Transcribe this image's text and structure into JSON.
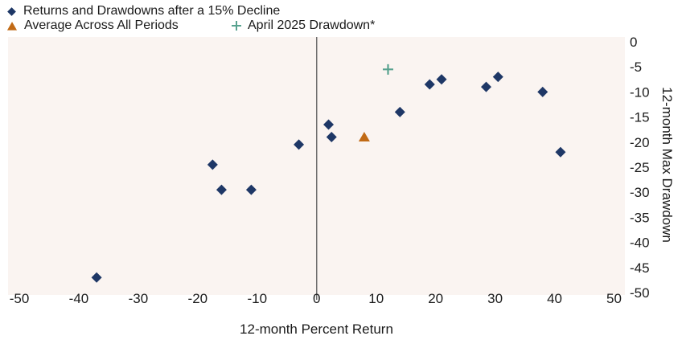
{
  "chart_data": {
    "type": "scatter",
    "title": "",
    "xlabel": "12-month Percent Return",
    "ylabel": "12-month Max Drawdown",
    "xlim": [
      -50,
      50
    ],
    "ylim": [
      0,
      -50
    ],
    "x_ticks": [
      -50,
      -40,
      -30,
      -20,
      -10,
      0,
      10,
      20,
      30,
      40,
      50
    ],
    "y_ticks": [
      0,
      -5,
      -10,
      -15,
      -20,
      -25,
      -30,
      -35,
      -40,
      -45,
      -50
    ],
    "grid": false,
    "legend_position": "top-left",
    "zero_reference_line_x": 0,
    "colors": {
      "plot_bg": "#FAF4F1",
      "zero_line": "#6E6E6E",
      "text": "#1A1A1A"
    },
    "series": [
      {
        "name": "Returns and Drawdowns after a 15% Decline",
        "marker": "diamond",
        "color": "#1E3766",
        "points": [
          [
            -37,
            -47
          ],
          [
            -17.5,
            -24.5
          ],
          [
            -16,
            -29.5
          ],
          [
            -11,
            -29.5
          ],
          [
            -3,
            -20.5
          ],
          [
            2,
            -16.5
          ],
          [
            2.5,
            -19
          ],
          [
            14,
            -14
          ],
          [
            19,
            -8.5
          ],
          [
            21,
            -7.5
          ],
          [
            28.5,
            -9
          ],
          [
            30.5,
            -7
          ],
          [
            38,
            -10
          ],
          [
            41,
            -22
          ]
        ]
      },
      {
        "name": "Average Across All Periods",
        "marker": "triangle",
        "color": "#C16A15",
        "points": [
          [
            8,
            -19
          ]
        ]
      },
      {
        "name": "April 2025 Drawdown*",
        "marker": "plus",
        "color": "#58A28F",
        "points": [
          [
            12,
            -5.5
          ]
        ]
      }
    ]
  }
}
